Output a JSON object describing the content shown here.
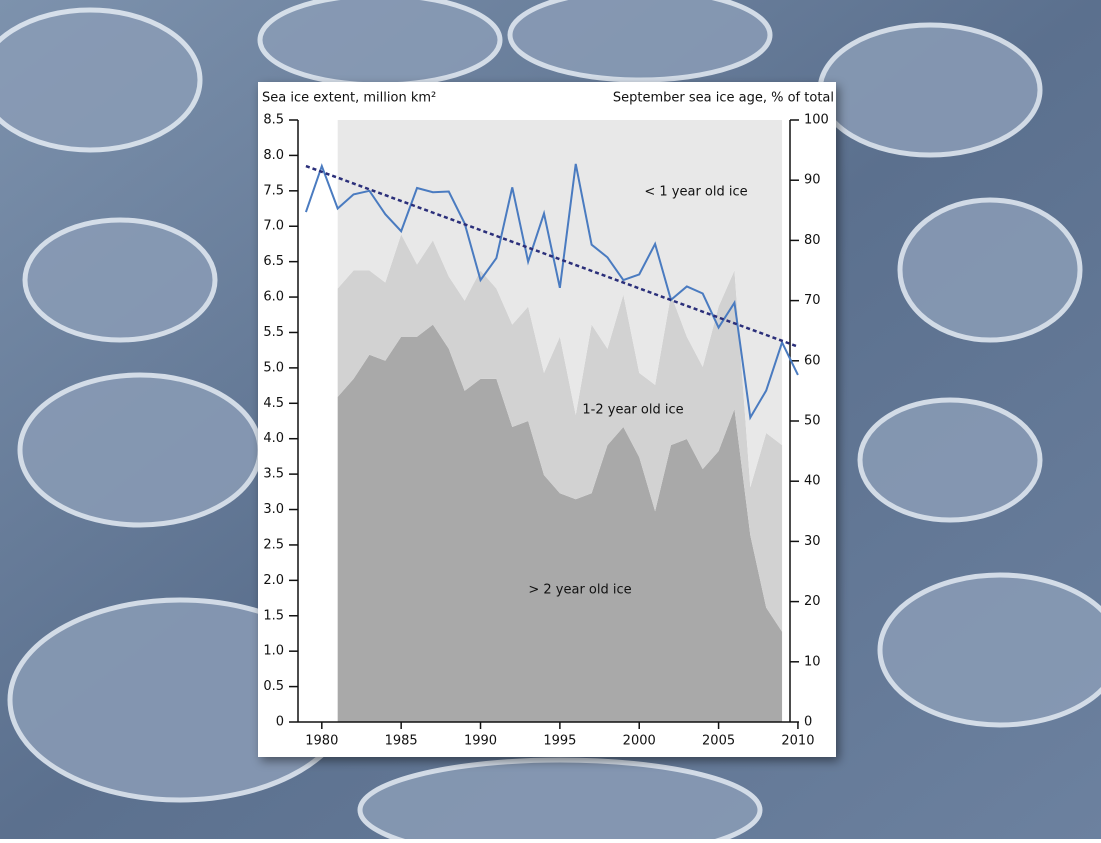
{
  "chart_data": {
    "type": "line",
    "y_label": "Sea ice extent, million km²",
    "y2_label": "September sea ice age, % of total",
    "xlim": [
      1978.5,
      2009.5
    ],
    "xticks": [
      1980,
      1985,
      1990,
      1995,
      2000,
      2005,
      2010
    ],
    "ylim": [
      0,
      8.5
    ],
    "yticks": [
      0,
      0.5,
      {
        "value": 1,
        "label": "1.0"
      },
      1.5,
      {
        "value": 2,
        "label": "2.0"
      },
      2.5,
      {
        "value": 3,
        "label": "3.0"
      },
      3.5,
      {
        "value": 4,
        "label": "4.0"
      },
      4.5,
      {
        "value": 5,
        "label": "5.0"
      },
      5.5,
      {
        "value": 6,
        "label": "6.0"
      },
      6.5,
      {
        "value": 7,
        "label": "7.0"
      },
      7.5,
      {
        "value": 8,
        "label": "8.0"
      },
      8.5
    ],
    "y2lim": [
      0,
      100
    ],
    "y2ticks": [
      0,
      10,
      20,
      30,
      40,
      50,
      60,
      70,
      80,
      90,
      100
    ],
    "series": [
      {
        "name": "> 2 year old ice",
        "type": "stacked_area",
        "axis": "y2",
        "color": "#a9a9a9",
        "x": [
          1981,
          1982,
          1983,
          1984,
          1985,
          1986,
          1987,
          1988,
          1989,
          1990,
          1991,
          1992,
          1993,
          1994,
          1995,
          1996,
          1997,
          1998,
          1999,
          2000,
          2001,
          2002,
          2003,
          2004,
          2005,
          2006,
          2007,
          2008,
          2009
        ],
        "values": [
          54,
          57,
          61,
          60,
          64,
          64,
          66,
          62,
          55,
          57,
          57,
          49,
          50,
          41,
          38,
          37,
          38,
          46,
          49,
          44,
          35,
          46,
          47,
          42,
          45,
          52,
          31,
          19,
          15
        ]
      },
      {
        "name": "1-2 year old ice",
        "type": "stacked_area",
        "axis": "y2",
        "color": "#d2d2d2",
        "x": [
          1981,
          1982,
          1983,
          1984,
          1985,
          1986,
          1987,
          1988,
          1989,
          1990,
          1991,
          1992,
          1993,
          1994,
          1995,
          1996,
          1997,
          1998,
          1999,
          2000,
          2001,
          2002,
          2003,
          2004,
          2005,
          2006,
          2007,
          2008,
          2009
        ],
        "values": [
          18,
          18,
          14,
          13,
          17,
          12,
          14,
          12,
          15,
          18,
          15,
          17,
          19,
          17,
          26,
          14,
          28,
          16,
          22,
          14,
          21,
          25,
          17,
          17,
          24,
          23,
          8,
          29,
          31
        ]
      },
      {
        "name": "< 1 year old ice",
        "type": "stacked_area",
        "axis": "y2",
        "color": "#e8e8e8",
        "x": [
          1981,
          1982,
          1983,
          1984,
          1985,
          1986,
          1987,
          1988,
          1989,
          1990,
          1991,
          1992,
          1993,
          1994,
          1995,
          1996,
          1997,
          1998,
          1999,
          2000,
          2001,
          2002,
          2003,
          2004,
          2005,
          2006,
          2007,
          2008,
          2009
        ],
        "values": [
          28,
          25,
          25,
          27,
          19,
          24,
          20,
          26,
          30,
          25,
          28,
          34,
          31,
          42,
          36,
          49,
          34,
          38,
          29,
          42,
          44,
          29,
          36,
          41,
          31,
          25,
          61,
          52,
          54
        ]
      },
      {
        "type": "line",
        "color": "#4a7bc0",
        "x": [
          1979,
          1980,
          1981,
          1982,
          1983,
          1984,
          1985,
          1986,
          1987,
          1988,
          1989,
          1990,
          1991,
          1992,
          1993,
          1994,
          1995,
          1996,
          1997,
          1998,
          1999,
          2000,
          2001,
          2002,
          2003,
          2004,
          2005,
          2006,
          2007,
          2008,
          2009,
          2010
        ],
        "values": [
          7.2,
          7.85,
          7.25,
          7.45,
          7.5,
          7.17,
          6.93,
          7.54,
          7.48,
          7.49,
          7.04,
          6.24,
          6.55,
          7.55,
          6.5,
          7.18,
          6.13,
          7.88,
          6.74,
          6.56,
          6.24,
          6.32,
          6.75,
          5.96,
          6.15,
          6.05,
          5.57,
          5.92,
          4.3,
          4.68,
          5.36,
          4.9
        ]
      },
      {
        "type": "line",
        "style": "dashed",
        "color": "#2b2f7a",
        "x": [
          1979,
          2010
        ],
        "values": [
          7.85,
          5.3
        ]
      }
    ],
    "label_positions": "inside"
  }
}
